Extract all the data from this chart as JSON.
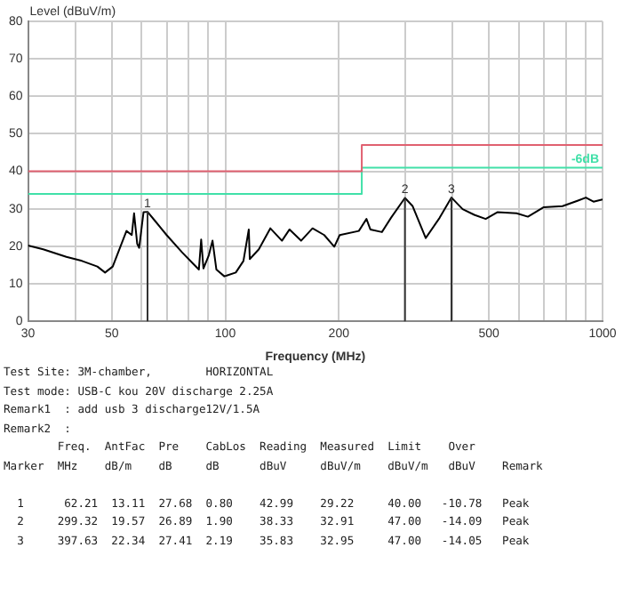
{
  "chart_data": {
    "type": "line",
    "ylabel": "Level (dBuV/m)",
    "xlabel": "Frequency (MHz)",
    "log": "x",
    "grid": true,
    "legend": false,
    "marker": "none",
    "xlim": [
      30,
      1000
    ],
    "xticks": [
      30,
      {
        "value": 40,
        "label": null
      },
      50,
      {
        "value": 60,
        "label": null
      },
      {
        "value": 70,
        "label": null
      },
      {
        "value": 80,
        "label": null
      },
      {
        "value": 90,
        "label": null
      },
      100,
      200,
      {
        "value": 300,
        "label": null
      },
      {
        "value": 400,
        "label": null
      },
      500,
      {
        "value": 600,
        "label": null
      },
      {
        "value": 700,
        "label": null
      },
      {
        "value": 800,
        "label": null
      },
      {
        "value": 900,
        "label": null
      },
      1000
    ],
    "ylim": [
      0,
      80
    ],
    "yticks": [
      0,
      10,
      20,
      30,
      40,
      50,
      60,
      70,
      80
    ],
    "series": [
      {
        "type": "step",
        "color": "#e06070",
        "x": [
          30,
          230,
          1000
        ],
        "values": [
          40,
          47,
          47
        ]
      },
      {
        "type": "step",
        "name": "-6dB",
        "color": "#40e0a8",
        "x": [
          30,
          230,
          1000
        ],
        "values": [
          34,
          41,
          41
        ]
      },
      {
        "color": "#000000",
        "x": [
          30,
          32.9,
          37.9,
          41.7,
          45.8,
          48,
          50.3,
          52.7,
          54.7,
          56.5,
          57.3,
          58.4,
          59.1,
          60.7,
          62.21,
          65.1,
          69.9,
          76.8,
          82.3,
          85.1,
          86.3,
          87.5,
          90.4,
          92.5,
          94.7,
          99.4,
          106.6,
          111.7,
          115.4,
          116.1,
          122.7,
          131.6,
          141.3,
          148,
          158.8,
          170.3,
          182.9,
          194.5,
          201,
          225.9,
          236.7,
          242.4,
          260.1,
          274.9,
          299.32,
          313.8,
          339.8,
          369.9,
          397.63,
          425.7,
          457,
          490,
          526,
          591.6,
          634,
          697,
          783,
          861,
          903,
          946,
          1000
        ],
        "values": [
          20.2,
          19.2,
          17.2,
          16.1,
          14.6,
          13,
          14.6,
          19.9,
          24.1,
          23,
          28.8,
          20.7,
          19.6,
          29.1,
          29.2,
          26.8,
          23,
          18.4,
          15.3,
          13.8,
          21.8,
          14.1,
          17.6,
          21.5,
          13.8,
          12,
          13,
          16.1,
          24.5,
          16.6,
          19.2,
          24.8,
          21.5,
          24.5,
          21.5,
          24.8,
          23,
          19.9,
          23,
          24.1,
          27.3,
          24.5,
          23.8,
          27.6,
          32.9,
          30.7,
          22.2,
          27.6,
          33,
          29.9,
          28.4,
          27.3,
          29.1,
          28.8,
          27.9,
          30.4,
          30.7,
          32.2,
          33,
          31.9,
          32.5
        ]
      }
    ],
    "annotations": [
      {
        "text": "1",
        "x": 62.21,
        "y": 29.22
      },
      {
        "text": "2",
        "x": 299.32,
        "y": 32.91
      },
      {
        "text": "3",
        "x": 397.63,
        "y": 32.95
      },
      "Test Site: 3M-chamber,        HORIZONTAL",
      "Test mode: USB-C kou 20V discharge 2.25A",
      "Remark1  : add usb 3 discharge12V/1.5A",
      "Remark2  :",
      "        Freq.  AntFac  Pre    CabLos  Reading  Measured  Limit    Over",
      "Marker  MHz    dB/m    dB     dB      dBuV     dBuV/m    dBuV/m   dBuV    Remark",
      "  1      62.21  13.11  27.68  0.80    42.99    29.22     40.00   -10.78   Peak",
      "  2     299.32  19.57  26.89  1.90    38.33    32.91     47.00   -14.09   Peak",
      "  3     397.63  22.34  27.41  2.19    35.83    32.95     47.00   -14.05   Peak"
    ]
  }
}
